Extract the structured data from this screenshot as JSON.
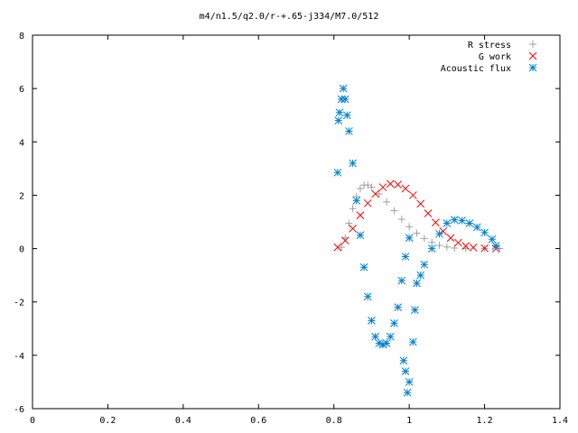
{
  "chart_data": {
    "type": "scatter",
    "title": "m4/n1.5/q2.0/r-+.65-j334/M7.0/512",
    "xlabel": "",
    "ylabel": "",
    "xlim": [
      0,
      1.4
    ],
    "ylim": [
      -6,
      8
    ],
    "x_ticks": [
      "0",
      "0.2",
      "0.4",
      "0.6",
      "0.8",
      "1",
      "1.2",
      "1.4"
    ],
    "y_ticks": [
      "-6",
      "-4",
      "-2",
      "0",
      "2",
      "4",
      "6",
      "8"
    ],
    "grid": false,
    "legend_position": "top-right",
    "series": [
      {
        "name": "R stress",
        "marker": "plus",
        "color": "#a0a0a0",
        "points": [
          [
            0.82,
            0.05
          ],
          [
            0.83,
            0.4
          ],
          [
            0.84,
            0.95
          ],
          [
            0.85,
            1.5
          ],
          [
            0.86,
            1.95
          ],
          [
            0.87,
            2.25
          ],
          [
            0.88,
            2.38
          ],
          [
            0.89,
            2.38
          ],
          [
            0.9,
            2.3
          ],
          [
            0.92,
            2.05
          ],
          [
            0.94,
            1.75
          ],
          [
            0.96,
            1.42
          ],
          [
            0.98,
            1.1
          ],
          [
            1.0,
            0.82
          ],
          [
            1.02,
            0.58
          ],
          [
            1.04,
            0.38
          ],
          [
            1.06,
            0.23
          ],
          [
            1.08,
            0.12
          ],
          [
            1.1,
            0.06
          ],
          [
            1.12,
            0.02
          ],
          [
            1.15,
            0.0
          ],
          [
            1.2,
            0.0
          ],
          [
            1.24,
            0.0
          ]
        ]
      },
      {
        "name": "G work",
        "marker": "cross",
        "color": "#ff0000",
        "points": [
          [
            0.81,
            0.05
          ],
          [
            0.83,
            0.3
          ],
          [
            0.85,
            0.75
          ],
          [
            0.87,
            1.25
          ],
          [
            0.89,
            1.7
          ],
          [
            0.91,
            2.05
          ],
          [
            0.93,
            2.3
          ],
          [
            0.95,
            2.43
          ],
          [
            0.97,
            2.4
          ],
          [
            0.99,
            2.25
          ],
          [
            1.01,
            2.0
          ],
          [
            1.03,
            1.68
          ],
          [
            1.05,
            1.32
          ],
          [
            1.07,
            0.98
          ],
          [
            1.09,
            0.65
          ],
          [
            1.11,
            0.4
          ],
          [
            1.13,
            0.22
          ],
          [
            1.15,
            0.1
          ],
          [
            1.17,
            0.04
          ],
          [
            1.2,
            0.01
          ],
          [
            1.23,
            0.0
          ]
        ]
      },
      {
        "name": "Acoustic flux",
        "marker": "star",
        "color": "#0080d0",
        "points": [
          [
            0.81,
            2.85
          ],
          [
            0.812,
            4.8
          ],
          [
            0.815,
            5.1
          ],
          [
            0.82,
            5.6
          ],
          [
            0.825,
            6.0
          ],
          [
            0.83,
            5.6
          ],
          [
            0.835,
            5.0
          ],
          [
            0.84,
            4.4
          ],
          [
            0.85,
            3.2
          ],
          [
            0.86,
            1.8
          ],
          [
            0.87,
            0.5
          ],
          [
            0.88,
            -0.7
          ],
          [
            0.89,
            -1.8
          ],
          [
            0.9,
            -2.7
          ],
          [
            0.91,
            -3.3
          ],
          [
            0.92,
            -3.55
          ],
          [
            0.93,
            -3.6
          ],
          [
            0.94,
            -3.55
          ],
          [
            0.95,
            -3.3
          ],
          [
            0.96,
            -2.8
          ],
          [
            0.97,
            -2.2
          ],
          [
            0.98,
            -1.2
          ],
          [
            0.99,
            -0.3
          ],
          [
            1.0,
            0.4
          ],
          [
            0.985,
            -4.2
          ],
          [
            0.99,
            -4.6
          ],
          [
            0.995,
            -5.4
          ],
          [
            1.0,
            -5.0
          ],
          [
            1.01,
            -3.5
          ],
          [
            1.015,
            -2.3
          ],
          [
            1.02,
            -1.3
          ],
          [
            1.03,
            -1.0
          ],
          [
            1.04,
            -0.6
          ],
          [
            1.06,
            0.0
          ],
          [
            1.08,
            0.55
          ],
          [
            1.1,
            0.95
          ],
          [
            1.12,
            1.08
          ],
          [
            1.14,
            1.05
          ],
          [
            1.16,
            0.95
          ],
          [
            1.18,
            0.8
          ],
          [
            1.2,
            0.6
          ],
          [
            1.22,
            0.35
          ],
          [
            1.23,
            0.1
          ]
        ]
      }
    ],
    "baseline_note": "0"
  }
}
